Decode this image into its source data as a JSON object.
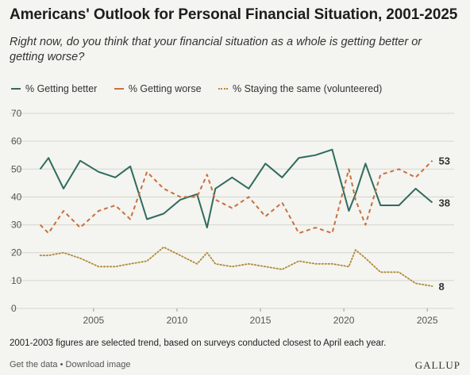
{
  "title": "Americans' Outlook for Personal Financial Situation, 2001-2025",
  "subtitle": "Right now, do you think that your financial situation as a whole is getting better or getting worse?",
  "footnote": "2001-2003 figures are selected trend, based on surveys conducted closest to April each year.",
  "footer": {
    "get_data": "Get the data",
    "separator": "•",
    "download": "Download image",
    "brand": "GALLUP"
  },
  "chart_data": {
    "type": "line",
    "x_ticks": [
      "2005",
      "2010",
      "2015",
      "2020",
      "2025"
    ],
    "y_ticks": [
      "0",
      "10",
      "20",
      "30",
      "40",
      "50",
      "60",
      "70"
    ],
    "xlim": [
      2001.2,
      2025.8
    ],
    "ylim": [
      0,
      70
    ],
    "grid": true,
    "legend_position": "top-left",
    "series": [
      {
        "name": "% Getting better",
        "color": "#2f6b5e",
        "style": "solid",
        "end_label": "38",
        "points": [
          [
            2001.8,
            50
          ],
          [
            2002.3,
            54
          ],
          [
            2003.2,
            43
          ],
          [
            2004.2,
            53
          ],
          [
            2005.3,
            49
          ],
          [
            2006.3,
            47
          ],
          [
            2007.2,
            51
          ],
          [
            2008.2,
            32
          ],
          [
            2009.2,
            34
          ],
          [
            2010.2,
            39
          ],
          [
            2011.2,
            41
          ],
          [
            2011.8,
            29
          ],
          [
            2012.3,
            43
          ],
          [
            2013.3,
            47
          ],
          [
            2014.3,
            43
          ],
          [
            2015.3,
            52
          ],
          [
            2016.3,
            47
          ],
          [
            2017.3,
            54
          ],
          [
            2018.3,
            55
          ],
          [
            2019.3,
            57
          ],
          [
            2020.3,
            35
          ],
          [
            2020.7,
            41
          ],
          [
            2021.3,
            52
          ],
          [
            2022.2,
            37
          ],
          [
            2023.3,
            37
          ],
          [
            2024.3,
            43
          ],
          [
            2025.3,
            38
          ]
        ]
      },
      {
        "name": "% Getting worse",
        "color": "#c8703d",
        "style": "dashed",
        "end_label": "53",
        "points": [
          [
            2001.8,
            30
          ],
          [
            2002.3,
            27
          ],
          [
            2003.2,
            35
          ],
          [
            2004.2,
            29
          ],
          [
            2005.3,
            35
          ],
          [
            2006.3,
            37
          ],
          [
            2007.2,
            32
          ],
          [
            2008.2,
            49
          ],
          [
            2009.2,
            43
          ],
          [
            2010.2,
            40
          ],
          [
            2011.2,
            40
          ],
          [
            2011.8,
            48
          ],
          [
            2012.3,
            39
          ],
          [
            2013.3,
            36
          ],
          [
            2014.3,
            40
          ],
          [
            2015.3,
            33
          ],
          [
            2016.3,
            38
          ],
          [
            2017.3,
            27
          ],
          [
            2018.3,
            29
          ],
          [
            2019.3,
            27
          ],
          [
            2020.3,
            50
          ],
          [
            2020.7,
            39
          ],
          [
            2021.3,
            30
          ],
          [
            2022.2,
            48
          ],
          [
            2023.3,
            50
          ],
          [
            2024.3,
            47
          ],
          [
            2025.3,
            53
          ]
        ]
      },
      {
        "name": "% Staying the same (volunteered)",
        "color": "#b08a3a",
        "style": "dotted",
        "end_label": "8",
        "points": [
          [
            2001.8,
            19
          ],
          [
            2002.3,
            19
          ],
          [
            2003.2,
            20
          ],
          [
            2004.2,
            18
          ],
          [
            2005.3,
            15
          ],
          [
            2006.3,
            15
          ],
          [
            2007.2,
            16
          ],
          [
            2008.2,
            17
          ],
          [
            2009.2,
            22
          ],
          [
            2010.2,
            19
          ],
          [
            2011.2,
            16
          ],
          [
            2011.8,
            20
          ],
          [
            2012.3,
            16
          ],
          [
            2013.3,
            15
          ],
          [
            2014.3,
            16
          ],
          [
            2015.3,
            15
          ],
          [
            2016.3,
            14
          ],
          [
            2017.3,
            17
          ],
          [
            2018.3,
            16
          ],
          [
            2019.3,
            16
          ],
          [
            2020.3,
            15
          ],
          [
            2020.7,
            21
          ],
          [
            2021.3,
            18
          ],
          [
            2022.2,
            13
          ],
          [
            2023.3,
            13
          ],
          [
            2024.3,
            9
          ],
          [
            2025.3,
            8
          ]
        ]
      }
    ]
  }
}
